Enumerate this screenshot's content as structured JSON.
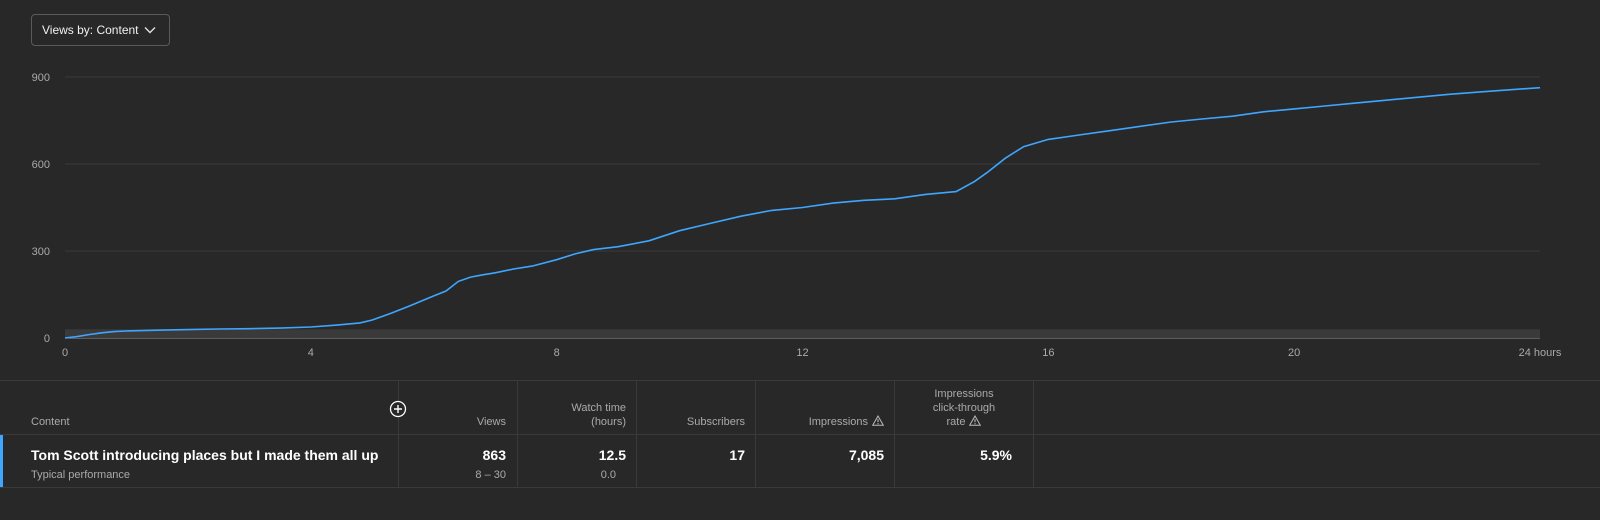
{
  "dropdown": {
    "label": "Views by: Content"
  },
  "chart_data": {
    "type": "line",
    "title": "",
    "xlabel": "",
    "ylabel": "",
    "x_ticks": [
      "0",
      "4",
      "8",
      "12",
      "16",
      "20",
      "24 hours"
    ],
    "y_ticks": [
      "0",
      "300",
      "600",
      "900"
    ],
    "xlim": [
      0,
      24
    ],
    "ylim": [
      0,
      900
    ],
    "grid": true,
    "line_color": "#3ea6ff",
    "typical_band_color": "#3a3a3a",
    "series": [
      {
        "x": [
          0,
          0.2,
          0.4,
          0.6,
          0.8,
          1,
          1.5,
          2,
          2.5,
          3,
          3.5,
          4,
          4.4,
          4.8,
          5,
          5.3,
          5.6,
          6,
          6.2,
          6.4,
          6.6,
          6.8,
          7,
          7.3,
          7.6,
          8,
          8.3,
          8.6,
          9,
          9.5,
          10,
          10.5,
          11,
          11.5,
          12,
          12.5,
          13,
          13.5,
          14,
          14.5,
          14.8,
          15,
          15.3,
          15.6,
          16,
          16.5,
          17,
          17.5,
          18,
          18.5,
          19,
          19.5,
          20,
          20.5,
          21,
          21.5,
          22,
          22.5,
          23,
          23.5,
          24
        ],
        "y": [
          0,
          5,
          12,
          18,
          22,
          24,
          27,
          29,
          31,
          32,
          34,
          38,
          44,
          52,
          62,
          85,
          110,
          145,
          162,
          195,
          210,
          218,
          225,
          238,
          248,
          270,
          290,
          305,
          315,
          335,
          370,
          395,
          420,
          440,
          450,
          465,
          475,
          480,
          495,
          505,
          540,
          570,
          620,
          660,
          685,
          700,
          715,
          730,
          745,
          755,
          765,
          780,
          790,
          800,
          810,
          820,
          830,
          840,
          848,
          856,
          863
        ]
      }
    ]
  },
  "table": {
    "headers": {
      "content": "Content",
      "views": "Views",
      "watch_time_line1": "Watch time",
      "watch_time_line2": "(hours)",
      "subscribers": "Subscribers",
      "impressions": "Impressions",
      "ctr_line1": "Impressions",
      "ctr_line2": "click-through",
      "ctr_line3": "rate"
    },
    "row": {
      "title": "Tom Scott introducing places but I made them all up",
      "typical_label": "Typical performance",
      "views": "863",
      "views_typical": "8 – 30",
      "watch_time": "12.5",
      "watch_time_typical": "0.0",
      "subscribers": "17",
      "impressions": "7,085",
      "ctr": "5.9%"
    },
    "icons": {
      "add_column": "plus-circle-icon",
      "warning": "warning-triangle-icon"
    }
  }
}
